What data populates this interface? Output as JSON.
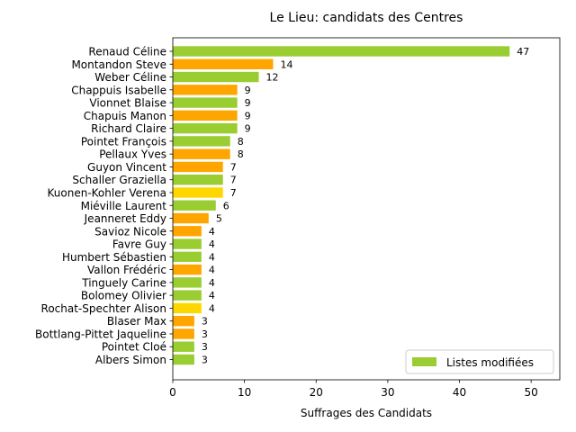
{
  "chart_data": {
    "type": "bar",
    "orientation": "horizontal",
    "title": "Le Lieu: candidats des Centres",
    "xlabel": "Suffrages des Candidats",
    "ylabel": "",
    "xlim": [
      0,
      54
    ],
    "xticks": [
      0,
      10,
      20,
      30,
      40,
      50
    ],
    "grid": false,
    "legend": {
      "placement": "lower-right",
      "entries": [
        {
          "label": "Listes modifiées",
          "color": "#9acd32"
        }
      ]
    },
    "bars": [
      {
        "name": "Renaud Céline",
        "value": 47,
        "color": "#9acd32"
      },
      {
        "name": "Montandon Steve",
        "value": 14,
        "color": "#ffa500"
      },
      {
        "name": "Weber Céline",
        "value": 12,
        "color": "#9acd32"
      },
      {
        "name": "Chappuis Isabelle",
        "value": 9,
        "color": "#ffa500"
      },
      {
        "name": "Vionnet Blaise",
        "value": 9,
        "color": "#9acd32"
      },
      {
        "name": "Chapuis Manon",
        "value": 9,
        "color": "#ffa500"
      },
      {
        "name": "Richard Claire",
        "value": 9,
        "color": "#9acd32"
      },
      {
        "name": "Pointet François",
        "value": 8,
        "color": "#9acd32"
      },
      {
        "name": "Pellaux Yves",
        "value": 8,
        "color": "#ffa500"
      },
      {
        "name": "Guyon Vincent",
        "value": 7,
        "color": "#ffa500"
      },
      {
        "name": "Schaller Graziella",
        "value": 7,
        "color": "#9acd32"
      },
      {
        "name": "Kuonen-Kohler Verena",
        "value": 7,
        "color": "#ffd700"
      },
      {
        "name": "Miéville Laurent",
        "value": 6,
        "color": "#9acd32"
      },
      {
        "name": "Jeanneret Eddy",
        "value": 5,
        "color": "#ffa500"
      },
      {
        "name": "Savioz Nicole",
        "value": 4,
        "color": "#ffa500"
      },
      {
        "name": "Favre Guy",
        "value": 4,
        "color": "#9acd32"
      },
      {
        "name": "Humbert Sébastien",
        "value": 4,
        "color": "#9acd32"
      },
      {
        "name": "Vallon Frédéric",
        "value": 4,
        "color": "#ffa500"
      },
      {
        "name": "Tinguely Carine",
        "value": 4,
        "color": "#9acd32"
      },
      {
        "name": "Bolomey Olivier",
        "value": 4,
        "color": "#9acd32"
      },
      {
        "name": "Rochat-Spechter Alison",
        "value": 4,
        "color": "#ffd700"
      },
      {
        "name": "Blaser Max",
        "value": 3,
        "color": "#ffa500"
      },
      {
        "name": "Bottlang-Pittet Jaqueline",
        "value": 3,
        "color": "#ffa500"
      },
      {
        "name": "Pointet Cloé",
        "value": 3,
        "color": "#9acd32"
      },
      {
        "name": "Albers Simon",
        "value": 3,
        "color": "#9acd32"
      }
    ]
  }
}
